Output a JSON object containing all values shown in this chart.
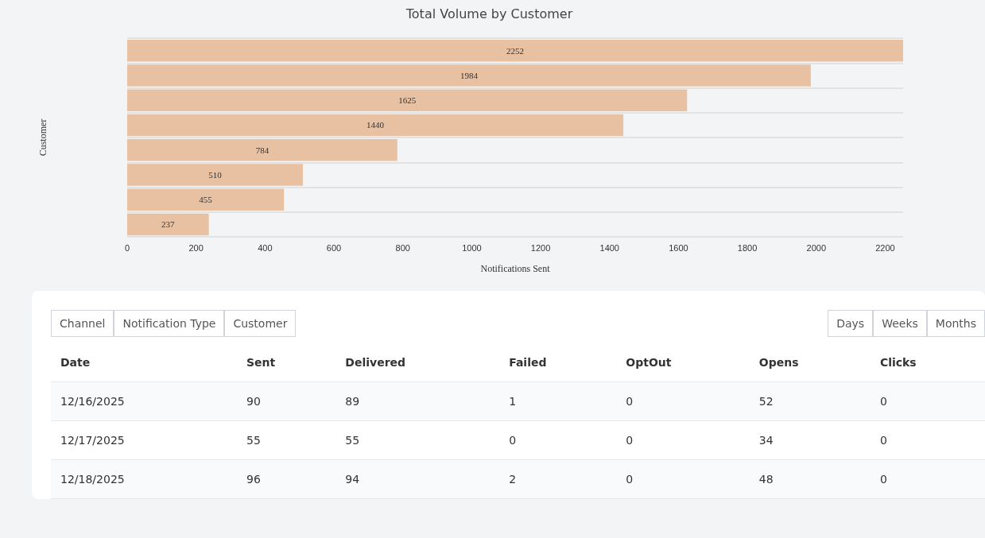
{
  "chart_data": [
    {
      "type": "bar",
      "title": "Total Volume by Customer",
      "xlabel": "Notifications Sent",
      "ylabel": "Customer",
      "orientation": "horizontal",
      "categories": [
        null,
        null,
        null,
        null,
        null,
        null,
        null,
        null
      ],
      "values": [
        2252,
        1984,
        1625,
        1440,
        784,
        510,
        455,
        237
      ],
      "color": "#e8c1a3",
      "xlim": [
        0,
        2252
      ],
      "xticks": [
        0,
        200,
        400,
        600,
        800,
        1000,
        1200,
        1400,
        1600,
        1800,
        2000,
        2200
      ],
      "grid": "y",
      "data_labels": true
    },
    {
      "type": "other",
      "annotations": [
        "Channel",
        "Notification Type",
        "Customer",
        "Days",
        "Weeks",
        "Months",
        "Date",
        "Sent",
        "Delivered",
        "Failed",
        "OptOut",
        "Opens",
        "Clicks",
        "12/16/2025",
        "90",
        "89",
        "1",
        "0",
        "52",
        "0",
        "12/17/2025",
        "55",
        "55",
        "0",
        "0",
        "34",
        "0",
        "12/18/2025",
        "96",
        "94",
        "2",
        "0",
        "48",
        "0"
      ]
    }
  ]
}
